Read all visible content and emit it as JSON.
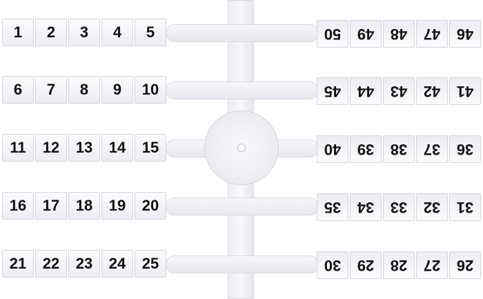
{
  "left_strips": [
    [
      "1",
      "2",
      "3",
      "4",
      "5"
    ],
    [
      "6",
      "7",
      "8",
      "9",
      "10"
    ],
    [
      "11",
      "12",
      "13",
      "14",
      "15"
    ],
    [
      "16",
      "17",
      "18",
      "19",
      "20"
    ],
    [
      "21",
      "22",
      "23",
      "24",
      "25"
    ]
  ],
  "right_strips": [
    [
      "46",
      "47",
      "48",
      "49",
      "50"
    ],
    [
      "41",
      "42",
      "43",
      "44",
      "45"
    ],
    [
      "36",
      "37",
      "38",
      "39",
      "40"
    ],
    [
      "31",
      "32",
      "33",
      "34",
      "35"
    ],
    [
      "26",
      "27",
      "28",
      "29",
      "30"
    ]
  ]
}
